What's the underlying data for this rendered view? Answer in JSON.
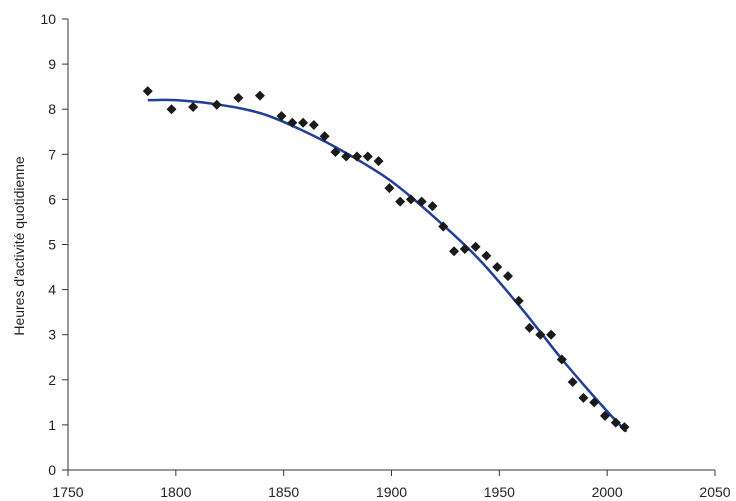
{
  "chart_data": {
    "type": "scatter",
    "title": "",
    "xlabel": "",
    "ylabel": "Heures d'activité quotidienne",
    "xlim": [
      1750,
      2050
    ],
    "ylim": [
      0,
      10
    ],
    "x_ticks": [
      "1750",
      "1800",
      "1850",
      "1900",
      "1950",
      "2000",
      "2050"
    ],
    "y_ticks": [
      "0",
      "1",
      "2",
      "3",
      "4",
      "5",
      "6",
      "7",
      "8",
      "9",
      "10"
    ],
    "grid": false,
    "legend": "none",
    "colors": {
      "points": "#1a1a1a",
      "trend": "#1f3f9a",
      "axis": "#333333"
    },
    "series": [
      {
        "type": "scatter",
        "x": [
          1787,
          1798,
          1808,
          1819,
          1829,
          1839,
          1849,
          1854,
          1859,
          1864,
          1869,
          1874,
          1879,
          1884,
          1889,
          1894,
          1899,
          1904,
          1909,
          1914,
          1919,
          1924,
          1929,
          1934,
          1939,
          1944,
          1949,
          1954,
          1959,
          1964,
          1969,
          1974,
          1979,
          1984,
          1989,
          1994,
          1999,
          2004,
          2008
        ],
        "y": [
          8.4,
          8.0,
          8.05,
          8.1,
          8.25,
          8.3,
          7.85,
          7.7,
          7.7,
          7.65,
          7.4,
          7.05,
          6.95,
          6.95,
          6.95,
          6.85,
          6.25,
          5.95,
          6.0,
          5.95,
          5.85,
          5.4,
          4.85,
          4.9,
          4.95,
          4.75,
          4.5,
          4.3,
          3.75,
          3.15,
          3.0,
          3.0,
          2.45,
          1.95,
          1.6,
          1.5,
          1.2,
          1.05,
          0.95
        ]
      },
      {
        "type": "line",
        "x": [
          1787,
          1800,
          1820,
          1840,
          1860,
          1880,
          1900,
          1920,
          1940,
          1960,
          1980,
          2000,
          2009
        ],
        "y": [
          8.2,
          8.2,
          8.1,
          7.9,
          7.5,
          7.0,
          6.4,
          5.6,
          4.7,
          3.6,
          2.4,
          1.3,
          0.85
        ]
      }
    ]
  }
}
